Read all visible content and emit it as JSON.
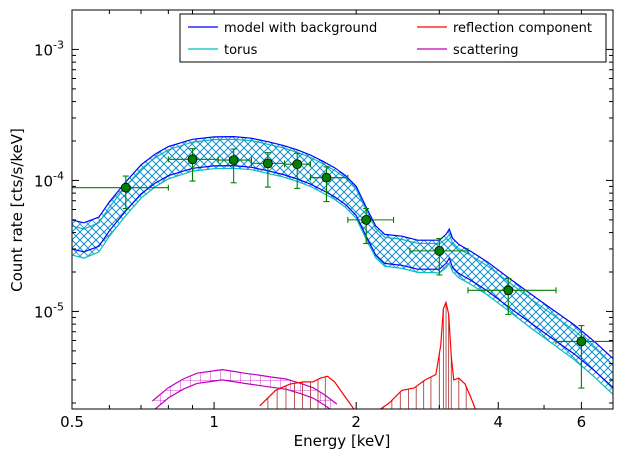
{
  "chart_data": {
    "type": "line",
    "xlabel": "Energy [keV]",
    "ylabel": "Count rate [cts/s/keV]",
    "x_scale": "log",
    "y_scale": "log",
    "xlim": [
      0.5,
      7.0
    ],
    "ylim": [
      1.8e-06,
      0.002
    ],
    "x_tick_labels": [
      {
        "value": 0.5,
        "label": "0.5"
      },
      {
        "value": 1,
        "label": "1"
      },
      {
        "value": 2,
        "label": "2"
      },
      {
        "value": 4,
        "label": "4"
      },
      {
        "value": 6,
        "label": "6"
      }
    ],
    "y_tick_labels": [
      {
        "value": 1e-05,
        "base": "10",
        "exp": "-5"
      },
      {
        "value": 0.0001,
        "base": "10",
        "exp": "-4"
      },
      {
        "value": 0.001,
        "base": "10",
        "exp": "-3"
      }
    ],
    "grid": false,
    "legend_position": "top-right",
    "legend": [
      {
        "name": "model with background",
        "color": "#0000ff"
      },
      {
        "name": "reflection component",
        "color": "#ff0000"
      },
      {
        "name": "torus",
        "color": "#00bfbf"
      },
      {
        "name": "scattering",
        "color": "#bf00bf"
      }
    ],
    "data_points": {
      "color": "#008000",
      "points": [
        {
          "x": 0.65,
          "y": 8.8e-05,
          "xerr": [
            0.5,
            0.8
          ],
          "yerr": [
            6.1e-05,
            0.000108
          ]
        },
        {
          "x": 0.9,
          "y": 0.000145,
          "xerr": [
            0.8,
            1.02
          ],
          "yerr": [
            9.9e-05,
            0.000175
          ]
        },
        {
          "x": 1.1,
          "y": 0.000143,
          "xerr": [
            1.02,
            1.2
          ],
          "yerr": [
            9.6e-05,
            0.000174
          ]
        },
        {
          "x": 1.3,
          "y": 0.000135,
          "xerr": [
            1.2,
            1.41
          ],
          "yerr": [
            8.9e-05,
            0.000163
          ]
        },
        {
          "x": 1.5,
          "y": 0.000133,
          "xerr": [
            1.41,
            1.6
          ],
          "yerr": [
            8.7e-05,
            0.000161
          ]
        },
        {
          "x": 1.73,
          "y": 0.000105,
          "xerr": [
            1.6,
            1.92
          ],
          "yerr": [
            6.9e-05,
            0.000127
          ]
        },
        {
          "x": 2.1,
          "y": 5e-05,
          "xerr": [
            1.92,
            2.4
          ],
          "yerr": [
            3.3e-05,
            6.1e-05
          ]
        },
        {
          "x": 3.0,
          "y": 2.9e-05,
          "xerr": [
            2.6,
            3.45
          ],
          "yerr": [
            1.9e-05,
            3.6e-05
          ]
        },
        {
          "x": 4.2,
          "y": 1.45e-05,
          "xerr": [
            3.45,
            5.3
          ],
          "yerr": [
            9.5e-06,
            1.78e-05
          ]
        },
        {
          "x": 6.0,
          "y": 5.9e-06,
          "xerr": [
            5.3,
            7.0
          ],
          "yerr": [
            2.6e-06,
            7.8e-06
          ]
        }
      ]
    },
    "series": [
      {
        "name": "model with background",
        "color": "#0000ff",
        "x": [
          0.5,
          0.53,
          0.57,
          0.6,
          0.65,
          0.7,
          0.75,
          0.8,
          0.9,
          1.0,
          1.1,
          1.2,
          1.3,
          1.4,
          1.5,
          1.6,
          1.7,
          1.8,
          1.9,
          2.0,
          2.1,
          2.2,
          2.3,
          2.5,
          2.7,
          2.9,
          3.0,
          3.1,
          3.15,
          3.2,
          3.3,
          3.5,
          3.8,
          4.2,
          4.7,
          5.2,
          5.8,
          6.4,
          7.0
        ],
        "y": [
          4e-05,
          3.8e-05,
          4.2e-05,
          5.5e-05,
          7.8e-05,
          0.000105,
          0.000127,
          0.000145,
          0.000165,
          0.000172,
          0.000173,
          0.000168,
          0.000158,
          0.000148,
          0.000137,
          0.000125,
          0.000112,
          0.0001,
          8.7e-05,
          7.2e-05,
          5e-05,
          3.6e-05,
          3.1e-05,
          3e-05,
          2.8e-05,
          2.8e-05,
          2.8e-05,
          3.1e-05,
          3.4e-05,
          2.9e-05,
          2.6e-05,
          2.3e-05,
          1.9e-05,
          1.45e-05,
          1.08e-05,
          8.3e-06,
          6.3e-06,
          4.7e-06,
          3.5e-06
        ],
        "band": 0.25
      },
      {
        "name": "torus",
        "color": "#00bfbf",
        "x": [
          0.5,
          0.53,
          0.57,
          0.6,
          0.65,
          0.7,
          0.75,
          0.8,
          0.9,
          1.0,
          1.1,
          1.2,
          1.3,
          1.4,
          1.5,
          1.6,
          1.7,
          1.8,
          1.9,
          2.0,
          2.1,
          2.2,
          2.3,
          2.5,
          2.7,
          2.9,
          3.0,
          3.1,
          3.15,
          3.2,
          3.3,
          3.5,
          3.8,
          4.2,
          4.7,
          5.2,
          5.8,
          6.4,
          7.0
        ],
        "y": [
          3.6e-05,
          3.4e-05,
          3.8e-05,
          5e-05,
          7.2e-05,
          9.75e-05,
          0.000119,
          0.000137,
          0.000157,
          0.000164,
          0.000165,
          0.000161,
          0.000151,
          0.000142,
          0.000131,
          0.00012,
          0.000107,
          9.55e-05,
          8.3e-05,
          6.85e-05,
          4.75e-05,
          3.43e-05,
          2.95e-05,
          2.84e-05,
          2.65e-05,
          2.64e-05,
          2.62e-05,
          2.87e-05,
          3.1e-05,
          2.68e-05,
          2.41e-05,
          2.14e-05,
          1.77e-05,
          1.35e-05,
          9.9e-06,
          7.6e-06,
          5.7e-06,
          4.2e-06,
          3.1e-06
        ],
        "band": 0.25
      },
      {
        "name": "reflection component",
        "color": "#ff0000",
        "x": [
          1.25,
          1.35,
          1.45,
          1.55,
          1.62,
          1.68,
          1.74,
          1.8,
          1.9,
          2.0,
          2.1,
          2.2,
          2.35,
          2.5,
          2.65,
          2.8,
          2.95,
          3.02,
          3.06,
          3.1,
          3.14,
          3.18,
          3.22,
          3.3,
          3.4,
          3.5,
          3.6
        ],
        "y": [
          1.9e-06,
          2.5e-06,
          2.8e-06,
          2.9e-06,
          2.9e-06,
          3.1e-06,
          3.2e-06,
          2.9e-06,
          2.2e-06,
          1.7e-06,
          1.6e-06,
          1.7e-06,
          2e-06,
          2.5e-06,
          2.6e-06,
          3e-06,
          3.3e-06,
          5.5e-06,
          1.05e-05,
          1.17e-05,
          9.5e-06,
          4.5e-06,
          3e-06,
          3.1e-06,
          2.8e-06,
          2.2e-06,
          1.7e-06
        ],
        "hatch_x": [
          1.3,
          1.36,
          1.42,
          1.48,
          1.54,
          1.6,
          1.66,
          1.72,
          2.28,
          2.38,
          2.48,
          2.58,
          2.68,
          2.78,
          2.88,
          3.0,
          3.06,
          3.1,
          3.14,
          3.18,
          3.3,
          3.42
        ]
      },
      {
        "name": "scattering",
        "color": "#bf00bf",
        "x": [
          0.74,
          0.8,
          0.86,
          0.92,
          0.98,
          1.04,
          1.1,
          1.16,
          1.24,
          1.32,
          1.42,
          1.52,
          1.62,
          1.72,
          1.82
        ],
        "y": [
          1.9e-06,
          2.4e-06,
          2.8e-06,
          3.1e-06,
          3.2e-06,
          3.3e-06,
          3.2e-06,
          3.1e-06,
          3e-06,
          2.9e-06,
          2.8e-06,
          2.6e-06,
          2.4e-06,
          2.1e-06,
          1.8e-06
        ],
        "band": 0.09
      }
    ]
  }
}
